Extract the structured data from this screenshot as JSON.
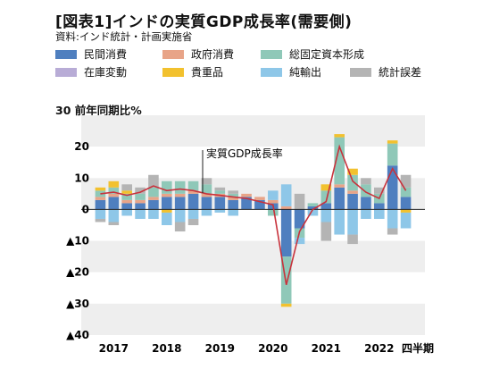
{
  "title": "[図表1]インドの実質GDP成長率(需要側)",
  "source": "資料:インド統計・計画実施省",
  "unit_label": "30 前年同期比%",
  "chart_data": {
    "type": "bar",
    "stacked": true,
    "xlabel": "",
    "ylabel": "前年同期比%",
    "ylim": [
      -40,
      30
    ],
    "yticks": [
      20,
      10,
      0,
      -10,
      -20,
      -30,
      -40
    ],
    "ytick_labels": [
      "20",
      "10",
      "0",
      "▲10",
      "▲20",
      "▲30",
      "▲40"
    ],
    "x_tick_labels": [
      "2017",
      "2018",
      "2019",
      "2020",
      "2021",
      "2022"
    ],
    "x_suffix": "四半期",
    "categories": [
      "2016Q4",
      "2017Q1",
      "2017Q2",
      "2017Q3",
      "2017Q4",
      "2018Q1",
      "2018Q2",
      "2018Q3",
      "2018Q4",
      "2019Q1",
      "2019Q2",
      "2019Q3",
      "2019Q4",
      "2020Q1",
      "2020Q2",
      "2020Q3",
      "2020Q4",
      "2021Q1",
      "2021Q2",
      "2021Q3",
      "2021Q4",
      "2022Q1",
      "2022Q2",
      "2022Q3"
    ],
    "series": [
      {
        "name": "民間消費",
        "color": "#4f7fbf",
        "values": [
          3,
          4,
          2,
          2,
          3,
          4,
          4,
          5,
          4,
          4,
          3,
          4,
          3,
          2,
          -15,
          -6,
          1,
          2,
          7,
          5,
          4,
          2,
          14,
          4
        ]
      },
      {
        "name": "政府消費",
        "color": "#e8a488",
        "values": [
          1,
          1,
          1,
          1,
          1,
          1,
          1,
          1,
          1,
          1,
          1,
          1,
          1,
          1,
          1,
          0,
          0,
          0,
          1,
          1,
          0,
          0,
          0,
          0
        ]
      },
      {
        "name": "総固定資本形成",
        "color": "#8fc8b8",
        "values": [
          2,
          2,
          2,
          2,
          3,
          4,
          4,
          3,
          3,
          1,
          1,
          0,
          0,
          -2,
          -15,
          -3,
          1,
          4,
          15,
          5,
          4,
          3,
          7,
          3
        ]
      },
      {
        "name": "在庫変動",
        "color": "#b8acd6",
        "values": [
          0,
          0,
          0,
          0,
          0,
          0,
          0,
          0,
          0,
          0,
          0,
          0,
          0,
          0,
          0,
          0,
          0,
          0,
          0,
          0,
          0,
          0,
          0,
          0
        ]
      },
      {
        "name": "貴重品",
        "color": "#f2c12e",
        "values": [
          1,
          2,
          1,
          0,
          0,
          -1,
          0,
          0,
          0,
          0,
          0,
          0,
          0,
          0,
          -1,
          0,
          0,
          2,
          1,
          2,
          0,
          0,
          1,
          -1
        ]
      },
      {
        "name": "純輸出",
        "color": "#8ec7e8",
        "values": [
          -3,
          -4,
          -2,
          -3,
          -3,
          -4,
          -4,
          -3,
          -2,
          -1,
          -2,
          0,
          0,
          3,
          7,
          -2,
          -2,
          -4,
          -8,
          -8,
          -3,
          -3,
          -6,
          -5
        ]
      },
      {
        "name": "統計誤差",
        "color": "#b4b4b4",
        "values": [
          -1,
          -1,
          2,
          2,
          4,
          0,
          -3,
          -2,
          2,
          1,
          1,
          0,
          0,
          0,
          0,
          5,
          0,
          -6,
          0,
          -3,
          2,
          2,
          -2,
          4
        ]
      }
    ],
    "line": {
      "name": "実質GDP成長率",
      "color": "#c8323c",
      "values": [
        5.0,
        5.5,
        4.5,
        5.5,
        7.5,
        6.0,
        6.5,
        6.0,
        5.0,
        4.5,
        4.0,
        3.5,
        2.5,
        1.5,
        -24.0,
        -7.0,
        0.0,
        2.5,
        20.0,
        9.0,
        5.5,
        3.5,
        13.0,
        6.0
      ]
    }
  }
}
